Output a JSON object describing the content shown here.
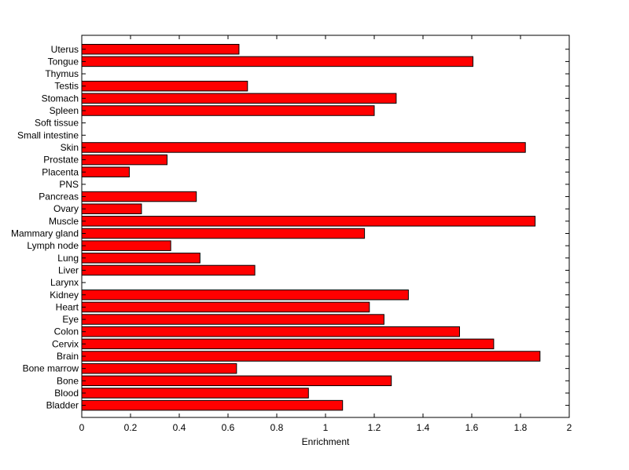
{
  "chart_data": {
    "type": "bar",
    "orientation": "horizontal",
    "xlabel": "Enrichment",
    "ylabel": "",
    "title": "",
    "xlim": [
      0,
      2
    ],
    "xticks": [
      "0",
      "0.2",
      "0.4",
      "0.6",
      "0.8",
      "1",
      "1.2",
      "1.4",
      "1.6",
      "1.8",
      "2"
    ],
    "categories": [
      "Bladder",
      "Blood",
      "Bone",
      "Bone marrow",
      "Brain",
      "Cervix",
      "Colon",
      "Eye",
      "Heart",
      "Kidney",
      "Larynx",
      "Liver",
      "Lung",
      "Lymph node",
      "Mammary gland",
      "Muscle",
      "Ovary",
      "Pancreas",
      "PNS",
      "Placenta",
      "Prostate",
      "Skin",
      "Small intestine",
      "Soft tissue",
      "Spleen",
      "Stomach",
      "Testis",
      "Thymus",
      "Tongue",
      "Uterus"
    ],
    "values": [
      1.07,
      0.93,
      1.27,
      0.635,
      1.88,
      1.69,
      1.55,
      1.24,
      1.18,
      1.34,
      0,
      0.71,
      0.485,
      0.365,
      1.16,
      1.86,
      0.245,
      0.47,
      0,
      0.195,
      0.35,
      1.82,
      0,
      0,
      1.2,
      1.29,
      0.68,
      0,
      1.605,
      0.645
    ],
    "bar_color": "#ff0000",
    "edge_color": "#000000",
    "grid": false,
    "legend": "none"
  }
}
